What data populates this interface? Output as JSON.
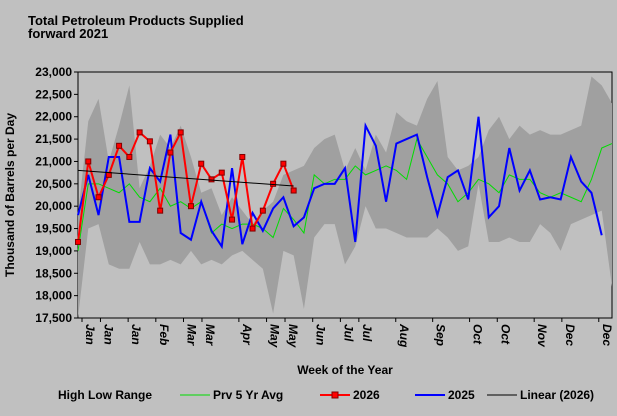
{
  "chart_data": {
    "type": "line",
    "title": "Total Petroleum Products Supplied",
    "subtitle": "forward 2021",
    "ylabel": "Thousand of Barrels per Day",
    "xlabel": "Week of the Year",
    "ylim": [
      17500,
      23000
    ],
    "yticks": [
      "17,500",
      "18,000",
      "18,500",
      "19,000",
      "19,500",
      "20,000",
      "20,500",
      "21,000",
      "21,500",
      "22,000",
      "22,500",
      "23,000"
    ],
    "ytick_values": [
      17500,
      18000,
      18500,
      19000,
      19500,
      20000,
      20500,
      21000,
      21500,
      22000,
      22500,
      23000
    ],
    "xlim": [
      1,
      53
    ],
    "xticks": [
      "Jan",
      "Jan",
      "Jan",
      "Feb",
      "Mar",
      "Mar",
      "Apr",
      "May",
      "May",
      "Jun",
      "Jul",
      "Jul",
      "Aug",
      "Sep",
      "Oct",
      "Oct",
      "Nov",
      "Dec",
      "Dec"
    ],
    "xtick_weeks": [
      1,
      3,
      6,
      9,
      12,
      14,
      18,
      21,
      23,
      26,
      29,
      31,
      35,
      39,
      43,
      46,
      50,
      53,
      57
    ],
    "range_high": [
      19800,
      21900,
      22400,
      21000,
      21800,
      22700,
      20400,
      20900,
      21600,
      21300,
      21800,
      21100,
      20300,
      20400,
      19800,
      20200,
      19900,
      19600,
      19900,
      20100,
      20700,
      20800,
      20900,
      21300,
      21500,
      21600,
      20800,
      21300,
      20800,
      21600,
      21200,
      22100,
      21900,
      21800,
      22400,
      22800,
      21100,
      20800,
      20900,
      21100,
      21700,
      22000,
      21500,
      21800,
      21600,
      21700,
      21600,
      21600,
      21700,
      21800,
      22900,
      22700,
      22300
    ],
    "range_low": [
      17500,
      19500,
      19600,
      18700,
      18600,
      18600,
      19200,
      18700,
      18700,
      18800,
      18700,
      19000,
      18700,
      18800,
      18700,
      18900,
      19000,
      18800,
      18600,
      17600,
      19000,
      18900,
      17700,
      19300,
      19600,
      19600,
      18700,
      19100,
      20000,
      19500,
      19500,
      19400,
      19300,
      19300,
      19300,
      19500,
      19300,
      19000,
      19100,
      20500,
      19200,
      19200,
      19300,
      19200,
      19200,
      19600,
      19400,
      19000,
      19600,
      19700,
      19800,
      19900,
      18200
    ],
    "series": [
      {
        "name": "High Low Range",
        "color": "#a0a0a0"
      },
      {
        "name": "Prv 5 Yr Avg",
        "color": "#00dd00",
        "values": [
          19000,
          20500,
          20500,
          20400,
          20300,
          20500,
          20200,
          20100,
          20400,
          20000,
          20100,
          19950,
          20100,
          19400,
          19600,
          19500,
          19600,
          19600,
          19500,
          19300,
          19950,
          19700,
          19400,
          20700,
          20500,
          20600,
          20600,
          20900,
          20700,
          20800,
          20900,
          20800,
          20600,
          21500,
          21100,
          20700,
          20500,
          20100,
          20300,
          20600,
          20500,
          20300,
          20700,
          20600,
          20600,
          20300,
          20200,
          20300,
          20200,
          20100,
          20600,
          21300,
          21400
        ]
      },
      {
        "name": "2026",
        "color": "#ff0000",
        "values": [
          19200,
          21000,
          20200,
          20700,
          21350,
          21100,
          21650,
          21450,
          19900,
          21200,
          21650,
          20000,
          20950,
          20600,
          20750,
          19700,
          21100,
          19500,
          19900,
          20500,
          20950,
          20350
        ]
      },
      {
        "name": "2025",
        "color": "#0000ff",
        "values": [
          19800,
          20700,
          19800,
          21100,
          21100,
          19650,
          19650,
          20850,
          20550,
          21600,
          19400,
          19250,
          20100,
          19450,
          19100,
          20850,
          19150,
          19850,
          19450,
          19950,
          20200,
          19550,
          19750,
          20400,
          20500,
          20500,
          20850,
          19200,
          21800,
          21350,
          20100,
          21400,
          21500,
          21600,
          20650,
          19800,
          20650,
          20800,
          20150,
          22000,
          19750,
          20000,
          21300,
          20350,
          20800,
          20150,
          20200,
          20150,
          21100,
          20550,
          20300,
          19350
        ]
      },
      {
        "name": "Linear (2026)",
        "color": "#000000",
        "values": [
          20800,
          20450
        ]
      }
    ],
    "legend": [
      "High Low Range",
      "Prv 5 Yr Avg",
      "2026",
      "2025",
      "Linear (2026)"
    ],
    "legend_position": "bottom",
    "grid": false
  }
}
